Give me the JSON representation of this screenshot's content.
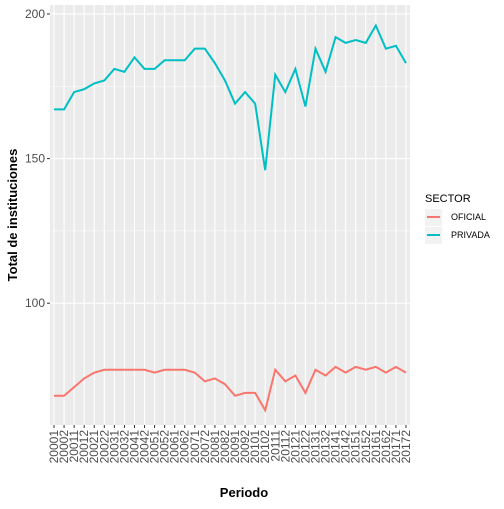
{
  "chart_data": {
    "type": "line",
    "x_label": "Periodo",
    "y_label": "Total de instituciones",
    "legend_title": "SECTOR",
    "categories": [
      "20001",
      "20002",
      "20011",
      "20012",
      "20021",
      "20022",
      "20031",
      "20032",
      "20041",
      "20042",
      "20051",
      "20052",
      "20061",
      "20062",
      "20071",
      "20072",
      "20081",
      "20082",
      "20091",
      "20092",
      "20101",
      "20102",
      "20111",
      "20112",
      "20121",
      "20122",
      "20131",
      "20132",
      "20141",
      "20142",
      "20151",
      "20152",
      "20161",
      "20162",
      "20171",
      "20172"
    ],
    "series": [
      {
        "name": "OFICIAL",
        "color": "#F8766D",
        "values": [
          68,
          68,
          71,
          74,
          76,
          77,
          77,
          77,
          77,
          77,
          76,
          77,
          77,
          77,
          76,
          73,
          74,
          72,
          68,
          69,
          69,
          63,
          77,
          73,
          75,
          69,
          77,
          75,
          78,
          76,
          78,
          77,
          78,
          76,
          78,
          76
        ]
      },
      {
        "name": "PRIVADA",
        "color": "#00BFC4",
        "values": [
          167,
          167,
          173,
          174,
          176,
          177,
          181,
          180,
          185,
          181,
          181,
          184,
          184,
          184,
          188,
          188,
          183,
          177,
          169,
          173,
          169,
          146,
          179,
          173,
          181,
          168,
          188,
          180,
          192,
          190,
          191,
          190,
          196,
          188,
          189,
          183
        ]
      }
    ],
    "ylim": [
      57.9,
      203.1
    ],
    "yticks": [
      100,
      150,
      200
    ],
    "grid": true,
    "legend_position": "right"
  }
}
